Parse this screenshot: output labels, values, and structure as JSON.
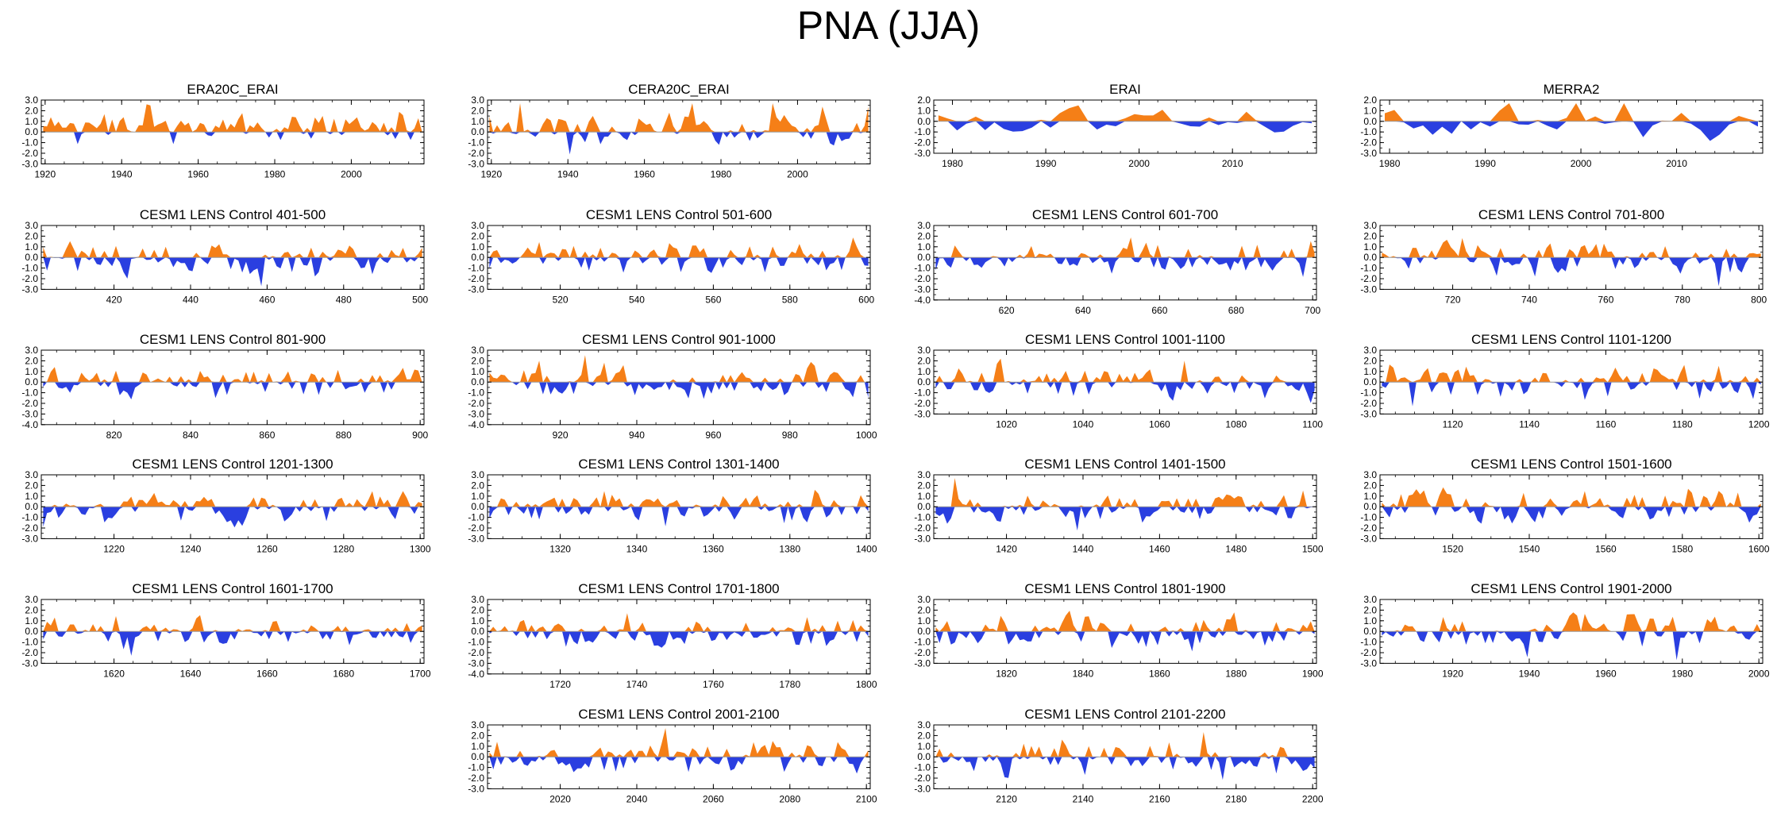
{
  "page_title": "PNA (JJA)",
  "colors": {
    "positive": "#f57f17",
    "negative": "#2a3fe0",
    "zero_line": "#999999"
  },
  "chart_data": [
    {
      "type": "area",
      "title": "ERA20C_ERAI",
      "xlim": [
        1919,
        2019
      ],
      "ylim": [
        -3,
        3
      ],
      "xticks": [
        1920,
        1940,
        1960,
        1980,
        2000
      ],
      "yticks": [
        "3.0",
        "2.0",
        "1.0",
        "0.0",
        "-1.0",
        "-2.0",
        "-3.0"
      ],
      "seed": 1,
      "bias": 0.35
    },
    {
      "type": "area",
      "title": "CERA20C_ERAI",
      "xlim": [
        1919,
        2019
      ],
      "ylim": [
        -3,
        3
      ],
      "xticks": [
        1920,
        1940,
        1960,
        1980,
        2000
      ],
      "yticks": [
        "3.0",
        "2.0",
        "1.0",
        "0.0",
        "-1.0",
        "-2.0",
        "-3.0"
      ],
      "seed": 2,
      "bias": 0.15
    },
    {
      "type": "area",
      "title": "ERAI",
      "xlim": [
        1978,
        2019
      ],
      "ylim": [
        -3,
        2
      ],
      "xticks": [
        1980,
        1990,
        2000,
        2010
      ],
      "yticks": [
        "2.0",
        "1.0",
        "0.0",
        "-1.0",
        "-2.0",
        "-3.0"
      ],
      "seed": 3,
      "bias": 0.0
    },
    {
      "type": "area",
      "title": "MERRA2",
      "xlim": [
        1979,
        2019
      ],
      "ylim": [
        -3,
        2
      ],
      "xticks": [
        1980,
        1990,
        2000,
        2010
      ],
      "yticks": [
        "2.0",
        "1.0",
        "0.0",
        "-1.0",
        "-2.0",
        "-3.0"
      ],
      "seed": 4,
      "bias": 0.0
    },
    {
      "type": "area",
      "title": "CESM1 LENS Control 401-500",
      "xlim": [
        401,
        501
      ],
      "ylim": [
        -3,
        3
      ],
      "xticks": [
        420,
        440,
        460,
        480,
        500
      ],
      "yticks": [
        "3.0",
        "2.0",
        "1.0",
        "0.0",
        "-1.0",
        "-2.0",
        "-3.0"
      ],
      "seed": 5,
      "bias": 0.0
    },
    {
      "type": "area",
      "title": "CESM1 LENS Control 501-600",
      "xlim": [
        501,
        601
      ],
      "ylim": [
        -3,
        3
      ],
      "xticks": [
        520,
        540,
        560,
        580,
        600
      ],
      "yticks": [
        "3.0",
        "2.0",
        "1.0",
        "0.0",
        "-1.0",
        "-2.0",
        "-3.0"
      ],
      "seed": 6,
      "bias": 0.0
    },
    {
      "type": "area",
      "title": "CESM1 LENS Control 601-700",
      "xlim": [
        601,
        701
      ],
      "ylim": [
        -4,
        3
      ],
      "xticks": [
        620,
        640,
        660,
        680,
        700
      ],
      "yticks": [
        "3.0",
        "2.0",
        "1.0",
        "0.0",
        "-1.0",
        "-2.0",
        "-3.0",
        "-4.0"
      ],
      "seed": 7,
      "bias": 0.0
    },
    {
      "type": "area",
      "title": "CESM1 LENS Control 701-800",
      "xlim": [
        701,
        801
      ],
      "ylim": [
        -3,
        3
      ],
      "xticks": [
        720,
        740,
        760,
        780,
        800
      ],
      "yticks": [
        "3.0",
        "2.0",
        "1.0",
        "0.0",
        "-1.0",
        "-2.0",
        "-3.0"
      ],
      "seed": 8,
      "bias": 0.0
    },
    {
      "type": "area",
      "title": "CESM1 LENS Control 801-900",
      "xlim": [
        801,
        901
      ],
      "ylim": [
        -4,
        3
      ],
      "xticks": [
        820,
        840,
        860,
        880,
        900
      ],
      "yticks": [
        "3.0",
        "2.0",
        "1.0",
        "0.0",
        "-1.0",
        "-2.0",
        "-3.0",
        "-4.0"
      ],
      "seed": 9,
      "bias": 0.0
    },
    {
      "type": "area",
      "title": "CESM1 LENS Control 901-1000",
      "xlim": [
        901,
        1001
      ],
      "ylim": [
        -4,
        3
      ],
      "xticks": [
        920,
        940,
        960,
        980,
        1000
      ],
      "yticks": [
        "3.0",
        "2.0",
        "1.0",
        "0.0",
        "-1.0",
        "-2.0",
        "-3.0",
        "-4.0"
      ],
      "seed": 10,
      "bias": 0.0
    },
    {
      "type": "area",
      "title": "CESM1 LENS Control 1001-1100",
      "xlim": [
        1001,
        1101
      ],
      "ylim": [
        -3,
        3
      ],
      "xticks": [
        1020,
        1040,
        1060,
        1080,
        1100
      ],
      "yticks": [
        "3.0",
        "2.0",
        "1.0",
        "0.0",
        "-1.0",
        "-2.0",
        "-3.0"
      ],
      "seed": 11,
      "bias": 0.0
    },
    {
      "type": "area",
      "title": "CESM1 LENS Control 1101-1200",
      "xlim": [
        1101,
        1201
      ],
      "ylim": [
        -3,
        3
      ],
      "xticks": [
        1120,
        1140,
        1160,
        1180,
        1200
      ],
      "yticks": [
        "3.0",
        "2.0",
        "1.0",
        "0.0",
        "-1.0",
        "-2.0",
        "-3.0"
      ],
      "seed": 12,
      "bias": 0.0
    },
    {
      "type": "area",
      "title": "CESM1 LENS Control 1201-1300",
      "xlim": [
        1201,
        1301
      ],
      "ylim": [
        -3,
        3
      ],
      "xticks": [
        1220,
        1240,
        1260,
        1280,
        1300
      ],
      "yticks": [
        "3.0",
        "2.0",
        "1.0",
        "0.0",
        "-1.0",
        "-2.0",
        "-3.0"
      ],
      "seed": 13,
      "bias": 0.0
    },
    {
      "type": "area",
      "title": "CESM1 LENS Control 1301-1400",
      "xlim": [
        1301,
        1401
      ],
      "ylim": [
        -3,
        3
      ],
      "xticks": [
        1320,
        1340,
        1360,
        1380,
        1400
      ],
      "yticks": [
        "3.0",
        "2.0",
        "1.0",
        "0.0",
        "-1.0",
        "-2.0",
        "-3.0"
      ],
      "seed": 14,
      "bias": 0.0
    },
    {
      "type": "area",
      "title": "CESM1 LENS Control 1401-1500",
      "xlim": [
        1401,
        1501
      ],
      "ylim": [
        -3,
        3
      ],
      "xticks": [
        1420,
        1440,
        1460,
        1480,
        1500
      ],
      "yticks": [
        "3.0",
        "2.0",
        "1.0",
        "0.0",
        "-1.0",
        "-2.0",
        "-3.0"
      ],
      "seed": 15,
      "bias": 0.0
    },
    {
      "type": "area",
      "title": "CESM1 LENS Control 1501-1600",
      "xlim": [
        1501,
        1601
      ],
      "ylim": [
        -3,
        3
      ],
      "xticks": [
        1520,
        1540,
        1560,
        1580,
        1600
      ],
      "yticks": [
        "3.0",
        "2.0",
        "1.0",
        "0.0",
        "-1.0",
        "-2.0",
        "-3.0"
      ],
      "seed": 16,
      "bias": 0.0
    },
    {
      "type": "area",
      "title": "CESM1 LENS Control 1601-1700",
      "xlim": [
        1601,
        1701
      ],
      "ylim": [
        -3,
        3
      ],
      "xticks": [
        1620,
        1640,
        1660,
        1680,
        1700
      ],
      "yticks": [
        "3.0",
        "2.0",
        "1.0",
        "0.0",
        "-1.0",
        "-2.0",
        "-3.0"
      ],
      "seed": 17,
      "bias": 0.0
    },
    {
      "type": "area",
      "title": "CESM1 LENS Control 1701-1800",
      "xlim": [
        1701,
        1801
      ],
      "ylim": [
        -4,
        3
      ],
      "xticks": [
        1720,
        1740,
        1760,
        1780,
        1800
      ],
      "yticks": [
        "3.0",
        "2.0",
        "1.0",
        "0.0",
        "-1.0",
        "-2.0",
        "-3.0",
        "-4.0"
      ],
      "seed": 18,
      "bias": 0.0
    },
    {
      "type": "area",
      "title": "CESM1 LENS Control 1801-1900",
      "xlim": [
        1801,
        1901
      ],
      "ylim": [
        -3,
        3
      ],
      "xticks": [
        1820,
        1840,
        1860,
        1880,
        1900
      ],
      "yticks": [
        "3.0",
        "2.0",
        "1.0",
        "0.0",
        "-1.0",
        "-2.0",
        "-3.0"
      ],
      "seed": 19,
      "bias": 0.0
    },
    {
      "type": "area",
      "title": "CESM1 LENS Control 1901-2000",
      "xlim": [
        1901,
        2001
      ],
      "ylim": [
        -3,
        3
      ],
      "xticks": [
        1920,
        1940,
        1960,
        1980,
        2000
      ],
      "yticks": [
        "3.0",
        "2.0",
        "1.0",
        "0.0",
        "-1.0",
        "-2.0",
        "-3.0"
      ],
      "seed": 20,
      "bias": 0.0
    },
    {
      "type": "area",
      "title": "CESM1 LENS Control 2001-2100",
      "xlim": [
        2001,
        2101
      ],
      "ylim": [
        -3,
        3
      ],
      "xticks": [
        2020,
        2040,
        2060,
        2080,
        2100
      ],
      "yticks": [
        "3.0",
        "2.0",
        "1.0",
        "0.0",
        "-1.0",
        "-2.0",
        "-3.0"
      ],
      "seed": 21,
      "bias": 0.0
    },
    {
      "type": "area",
      "title": "CESM1 LENS Control 2101-2200",
      "xlim": [
        2101,
        2201
      ],
      "ylim": [
        -3,
        3
      ],
      "xticks": [
        2120,
        2140,
        2160,
        2180,
        2200
      ],
      "yticks": [
        "3.0",
        "2.0",
        "1.0",
        "0.0",
        "-1.0",
        "-2.0",
        "-3.0"
      ],
      "seed": 22,
      "bias": 0.0
    }
  ]
}
